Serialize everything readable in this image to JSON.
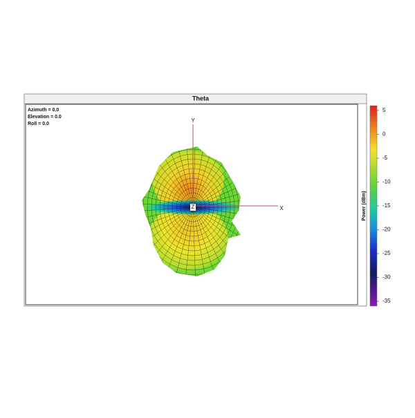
{
  "header": {
    "title": "Theta"
  },
  "view": {
    "azimuth": "Azimuth = 0.0",
    "elevation": "Elevation = 0.0",
    "roll": "Roll = 0.0"
  },
  "axes": {
    "x": "X",
    "y": "Y",
    "z": "Z"
  },
  "colorbar": {
    "label": "Power (dBm)",
    "range": [
      -36,
      6
    ],
    "ticks": [
      5,
      0,
      -5,
      -10,
      -15,
      -20,
      -25,
      -30,
      -35
    ]
  }
}
